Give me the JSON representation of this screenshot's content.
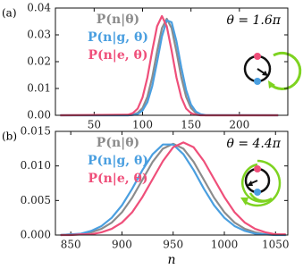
{
  "chart_data": [
    {
      "type": "line",
      "panel_label": "(a)",
      "annotation": "θ = 1.6π",
      "xlim": [
        10,
        250
      ],
      "xticks": [
        50,
        100,
        150,
        200
      ],
      "ylim": [
        0,
        0.04
      ],
      "yticks": [
        {
          "value": 0,
          "label": "0.00"
        },
        0.01,
        0.02,
        0.03,
        0.04
      ],
      "x": [
        15,
        85,
        90,
        95,
        100,
        105,
        110,
        115,
        120,
        125,
        130,
        135,
        140,
        145,
        150,
        155,
        160,
        165,
        240
      ],
      "series": [
        {
          "name": "P(n|θ)",
          "color": "#8c8c8c",
          "values": [
            0,
            0,
            0.0002,
            0.0009,
            0.0027,
            0.0069,
            0.0142,
            0.0238,
            0.0325,
            0.036,
            0.0325,
            0.0238,
            0.0142,
            0.0069,
            0.0027,
            0.0009,
            0.0002,
            0,
            0
          ]
        },
        {
          "name": "P(n|g, θ)",
          "color": "#4a9fe0",
          "values": [
            0,
            0,
            0.0001,
            0.0005,
            0.0018,
            0.0049,
            0.0109,
            0.0199,
            0.0294,
            0.0354,
            0.0347,
            0.0276,
            0.0179,
            0.0094,
            0.004,
            0.0014,
            0.0004,
            0.0001,
            0
          ]
        },
        {
          "name": "P(n|e, θ)",
          "color": "#ef4f7a",
          "values": [
            0,
            0.0002,
            0.0008,
            0.0025,
            0.0067,
            0.0141,
            0.0241,
            0.0332,
            0.037,
            0.0332,
            0.0241,
            0.0141,
            0.0067,
            0.0025,
            0.0008,
            0.0002,
            0,
            0,
            0
          ]
        }
      ]
    },
    {
      "type": "line",
      "panel_label": "(b)",
      "annotation": "θ = 4.4π",
      "xlabel": "n",
      "xlim": [
        835,
        1062
      ],
      "xticks": [
        850,
        900,
        950,
        1000,
        1050
      ],
      "ylim": [
        0,
        0.015
      ],
      "yticks": [
        {
          "value": 0,
          "label": "0.000"
        },
        {
          "value": 0.005,
          "label": "0.005"
        },
        {
          "value": 0.01,
          "label": "0.010"
        },
        {
          "value": 0.015,
          "label": "0.015"
        }
      ],
      "x": [
        840,
        850,
        860,
        870,
        880,
        890,
        900,
        910,
        920,
        930,
        940,
        950,
        960,
        970,
        980,
        990,
        1000,
        1010,
        1020,
        1030,
        1040,
        1050,
        1060
      ],
      "series": [
        {
          "name": "P(n|θ)",
          "color": "#8c8c8c",
          "values": [
            0,
            0.0001,
            0.0001,
            0.0004,
            0.0009,
            0.0018,
            0.0033,
            0.0054,
            0.008,
            0.0106,
            0.0125,
            0.0132,
            0.0125,
            0.0106,
            0.008,
            0.0054,
            0.0033,
            0.0018,
            0.0009,
            0.0004,
            0.0001,
            0.0001,
            0
          ]
        },
        {
          "name": "P(n|g, θ)",
          "color": "#4a9fe0",
          "values": [
            0,
            0.0001,
            0.0002,
            0.0006,
            0.0013,
            0.0025,
            0.0043,
            0.0067,
            0.0094,
            0.0117,
            0.0131,
            0.0131,
            0.0117,
            0.0094,
            0.0067,
            0.0043,
            0.0025,
            0.0013,
            0.0006,
            0.0002,
            0.0001,
            0,
            0
          ]
        },
        {
          "name": "P(n|e, θ)",
          "color": "#ef4f7a",
          "values": [
            0,
            0,
            0.0001,
            0.0001,
            0.0004,
            0.0009,
            0.0018,
            0.0033,
            0.0055,
            0.0081,
            0.0107,
            0.0127,
            0.0134,
            0.0127,
            0.0107,
            0.0081,
            0.0055,
            0.0033,
            0.0018,
            0.0009,
            0.0004,
            0.0001,
            0.0001
          ]
        }
      ]
    }
  ]
}
